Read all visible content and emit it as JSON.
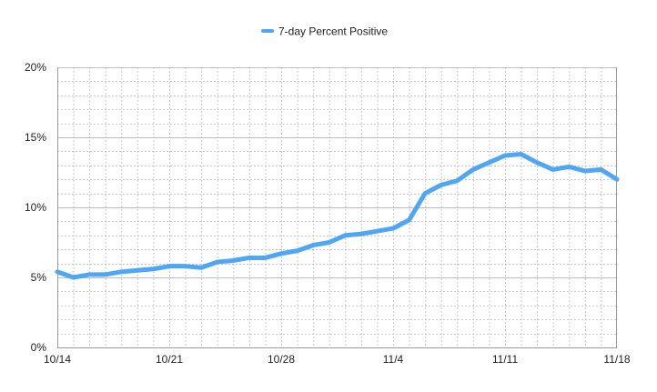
{
  "legend": {
    "position": "top-center",
    "label": "7-day Percent Positive"
  },
  "colors": {
    "series": "#4ea6f5",
    "grid_major": "#bdbdbd",
    "grid_minor": "#c8c8c8",
    "axis": "#9a9a9a",
    "text": "#222222"
  },
  "chart_data": {
    "type": "line",
    "title": "",
    "xlabel": "",
    "ylabel": "",
    "grid": true,
    "legend_position": "top-center",
    "ylim": [
      0,
      20
    ],
    "y_ticks": [
      {
        "value": 0,
        "label": "0%"
      },
      {
        "value": 5,
        "label": "5%"
      },
      {
        "value": 10,
        "label": "10%"
      },
      {
        "value": 15,
        "label": "15%"
      },
      {
        "value": 20,
        "label": "20%"
      }
    ],
    "x_tick_labels": [
      {
        "index": 0,
        "label": "10/14"
      },
      {
        "index": 7,
        "label": "10/21"
      },
      {
        "index": 14,
        "label": "10/28"
      },
      {
        "index": 21,
        "label": "11/4"
      },
      {
        "index": 28,
        "label": "11/11"
      },
      {
        "index": 35,
        "label": "11/18"
      }
    ],
    "categories": [
      "10/14",
      "10/15",
      "10/16",
      "10/17",
      "10/18",
      "10/19",
      "10/20",
      "10/21",
      "10/22",
      "10/23",
      "10/24",
      "10/25",
      "10/26",
      "10/27",
      "10/28",
      "10/29",
      "10/30",
      "10/31",
      "11/1",
      "11/2",
      "11/3",
      "11/4",
      "11/5",
      "11/6",
      "11/7",
      "11/8",
      "11/9",
      "11/10",
      "11/11",
      "11/12",
      "11/13",
      "11/14",
      "11/15",
      "11/16",
      "11/17",
      "11/18"
    ],
    "series": [
      {
        "name": "7-day Percent Positive",
        "values": [
          5.4,
          5.0,
          5.2,
          5.2,
          5.4,
          5.5,
          5.6,
          5.8,
          5.8,
          5.7,
          6.1,
          6.2,
          6.4,
          6.4,
          6.7,
          6.9,
          7.3,
          7.5,
          8.0,
          8.1,
          8.3,
          8.5,
          9.1,
          11.0,
          11.6,
          11.9,
          12.7,
          13.2,
          13.7,
          13.8,
          13.2,
          12.7,
          12.9,
          12.6,
          12.7,
          12.0
        ]
      }
    ]
  }
}
